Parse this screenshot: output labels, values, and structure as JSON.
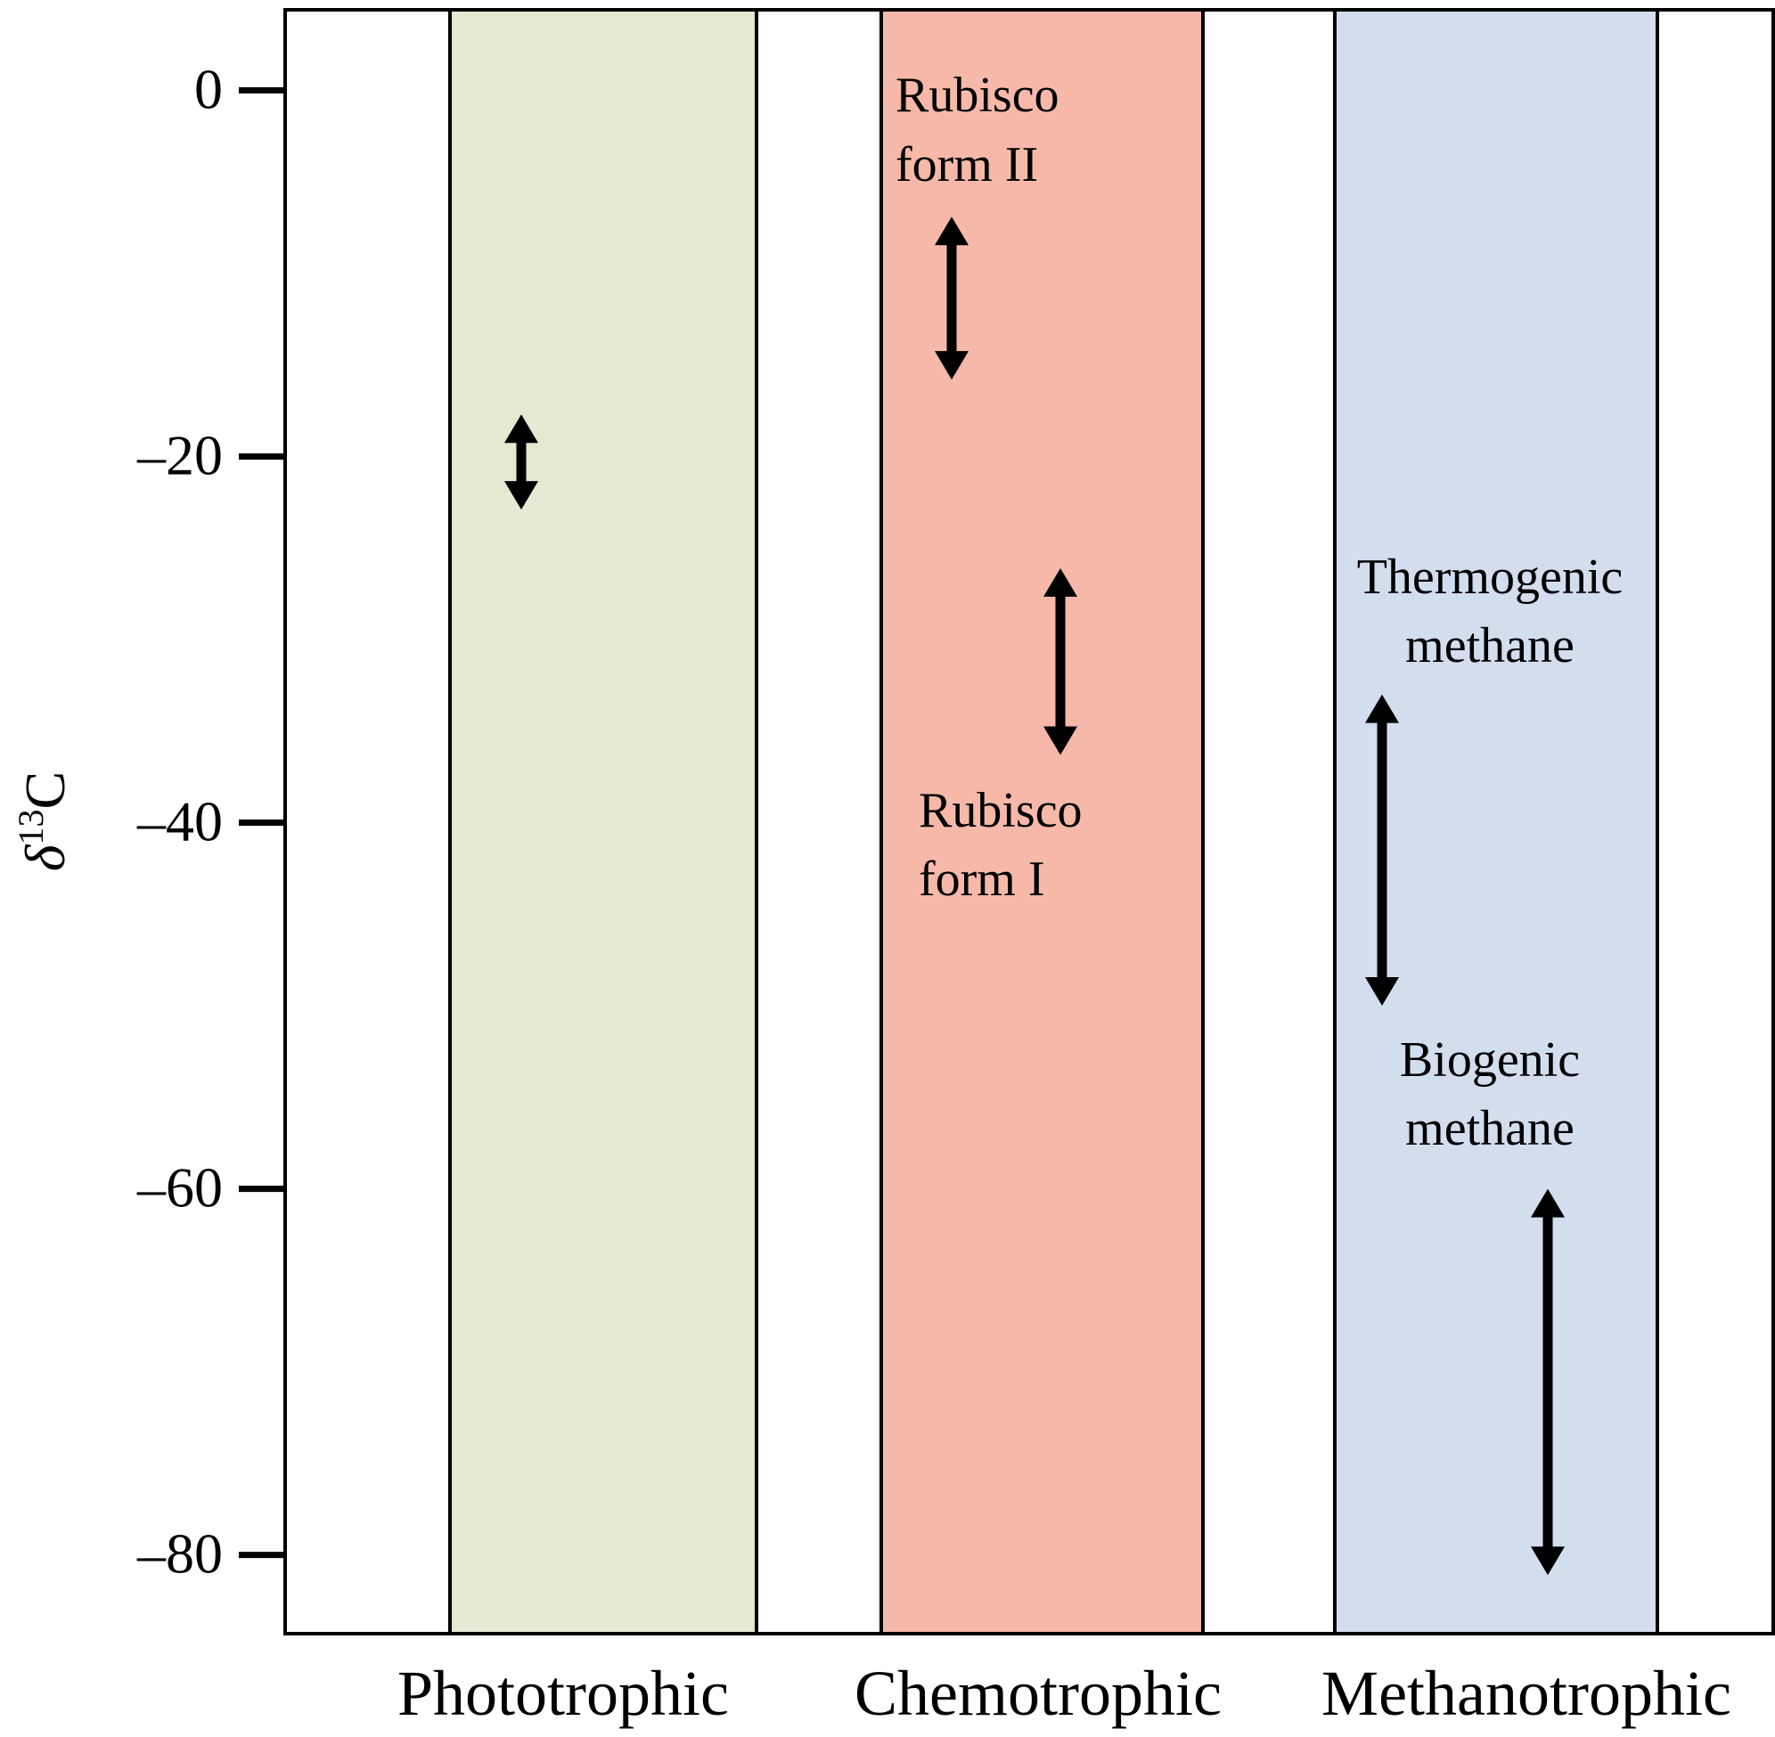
{
  "chart_data": {
    "type": "range",
    "ylabel": "δ13C",
    "ylabel_base": "δ",
    "ylabel_sup": "13",
    "ylabel_tail": "C",
    "ylim": [
      -84.3,
      4.4
    ],
    "yticks": [
      0,
      -20,
      -40,
      -60,
      -80
    ],
    "ytick_labels": [
      "0",
      "–20",
      "–40",
      "–60",
      "–80"
    ],
    "grid": false,
    "categories": [
      {
        "name": "Phototrophic",
        "fill_color": "#e5e9d1",
        "label_color": "#1a7a3c"
      },
      {
        "name": "Chemotrophic",
        "fill_color": "#f6b9a9",
        "label_color": "#eb6420"
      },
      {
        "name": "Methanotrophic",
        "fill_color": "#d2deee",
        "label_color": "#3d4d9e"
      }
    ],
    "ranges": [
      {
        "category": "Phototrophic",
        "y_high": -17.7,
        "y_low": -22.9
      },
      {
        "category": "Chemotrophic",
        "label": "Rubisco form II",
        "y_high": -6.9,
        "y_low": -15.8
      },
      {
        "category": "Chemotrophic",
        "label": "Rubisco form I",
        "y_high": -26.1,
        "y_low": -36.3
      },
      {
        "category": "Methanotrophic",
        "label": "Thermogenic methane",
        "y_high": -33.0,
        "y_low": -50.0
      },
      {
        "category": "Methanotrophic",
        "label": "Biogenic methane",
        "y_high": -60.0,
        "y_low": -81.1
      }
    ],
    "annotations": [
      {
        "line1": "Rubisco",
        "line2": "form II"
      },
      {
        "line1": "Rubisco",
        "line2": "form I"
      },
      {
        "line1": "Thermogenic",
        "line2": "methane"
      },
      {
        "line1": "Biogenic",
        "line2": "methane"
      }
    ]
  }
}
